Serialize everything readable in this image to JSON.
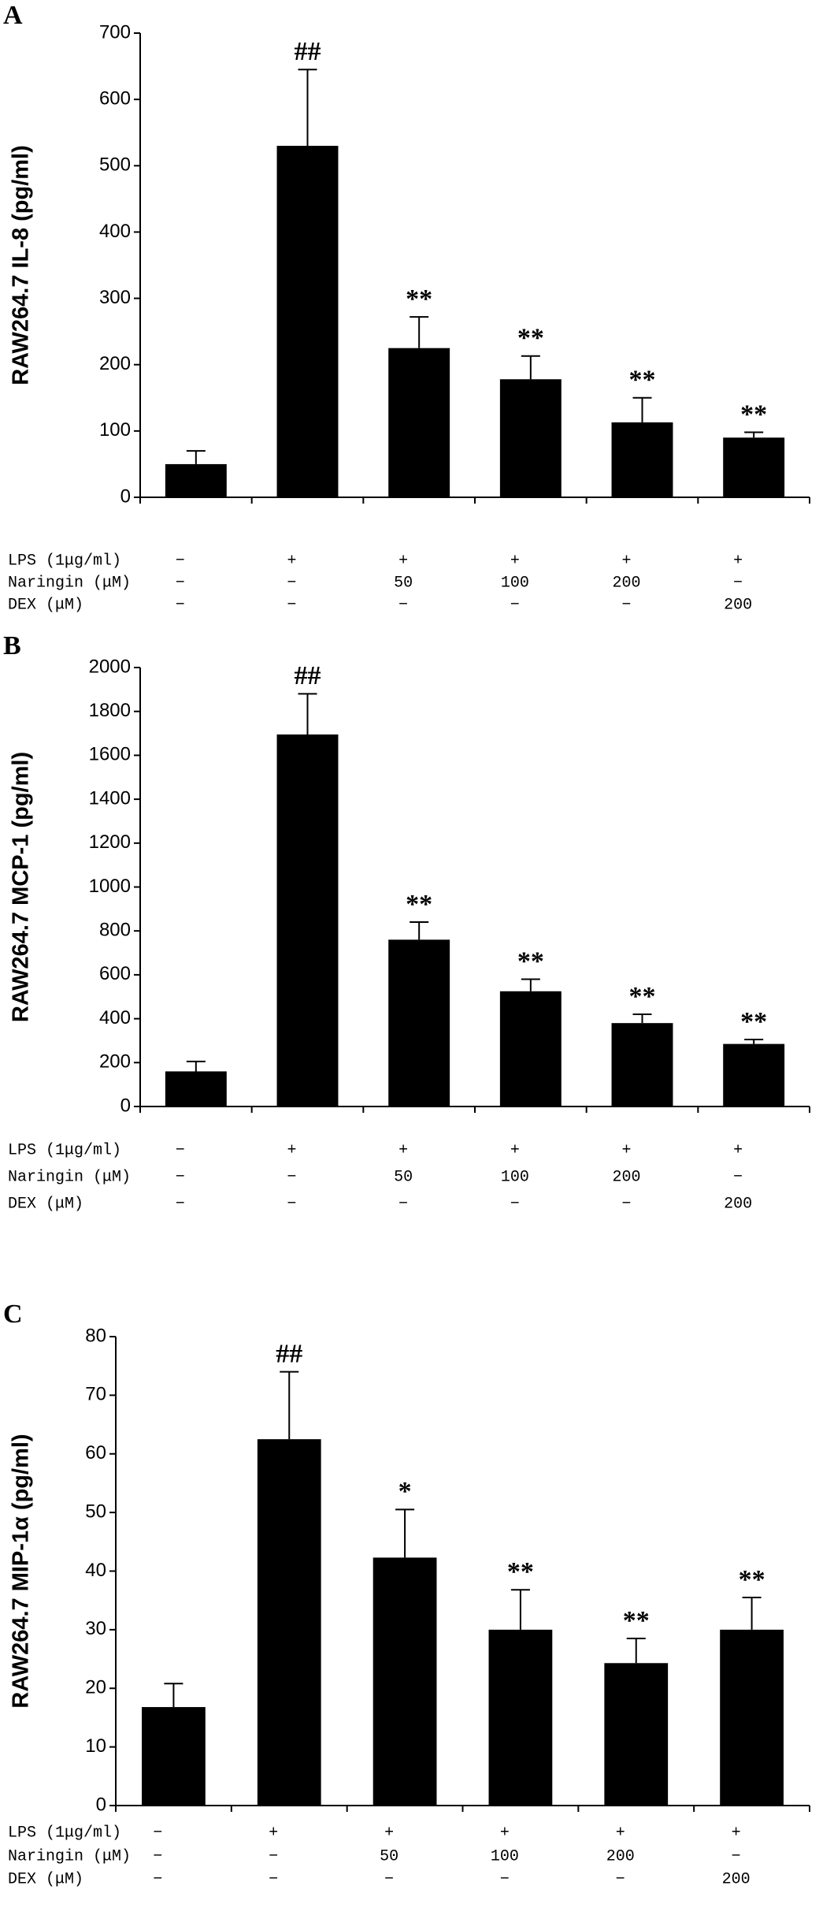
{
  "chart_data": [
    {
      "type": "bar",
      "panel": "A",
      "ylabel": "RAW264.7  IL-8 (pg/ml)",
      "color": "#000000",
      "values": [
        50,
        530,
        225,
        178,
        113,
        90
      ],
      "errors": [
        20,
        115,
        47,
        35,
        37,
        8
      ],
      "annotations": [
        null,
        "##",
        "**",
        "**",
        "**",
        "**"
      ],
      "ylim": [
        0,
        700
      ],
      "yticks": [
        0,
        100,
        200,
        300,
        400,
        500,
        600,
        700
      ],
      "treatments": [
        {
          "label": "LPS (1μg/ml)",
          "values": [
            "−",
            "+",
            "+",
            "+",
            "+",
            "+"
          ]
        },
        {
          "label": "Naringin (μM)",
          "values": [
            "−",
            "−",
            "50",
            "100",
            "200",
            "−"
          ]
        },
        {
          "label": "DEX (μM)",
          "values": [
            "−",
            "−",
            "−",
            "−",
            "−",
            "200"
          ]
        }
      ]
    },
    {
      "type": "bar",
      "panel": "B",
      "ylabel": "RAW264.7  MCP-1 (pg/ml)",
      "color": "#000000",
      "values": [
        160,
        1695,
        760,
        525,
        380,
        285
      ],
      "errors": [
        45,
        185,
        80,
        55,
        40,
        20
      ],
      "annotations": [
        null,
        "##",
        "**",
        "**",
        "**",
        "**"
      ],
      "ylim": [
        0,
        2000
      ],
      "yticks": [
        0,
        200,
        400,
        600,
        800,
        1000,
        1200,
        1400,
        1600,
        1800,
        2000
      ],
      "treatments": [
        {
          "label": "LPS (1μg/ml)",
          "values": [
            "−",
            "+",
            "+",
            "+",
            "+",
            "+"
          ]
        },
        {
          "label": "Naringin (μM)",
          "values": [
            "−",
            "−",
            "50",
            "100",
            "200",
            "−"
          ]
        },
        {
          "label": "DEX (μM)",
          "values": [
            "−",
            "−",
            "−",
            "−",
            "−",
            "200"
          ]
        }
      ]
    },
    {
      "type": "bar",
      "panel": "C",
      "ylabel": "RAW264.7 MIP-1α (pg/ml)",
      "color": "#000000",
      "values": [
        16.8,
        62.5,
        42.3,
        30,
        24.3,
        30
      ],
      "errors": [
        4,
        11.5,
        8.2,
        6.8,
        4.2,
        5.5
      ],
      "annotations": [
        null,
        "##",
        "*",
        "**",
        "**",
        "**"
      ],
      "ylim": [
        0,
        80
      ],
      "yticks": [
        0,
        10,
        20,
        30,
        40,
        50,
        60,
        70,
        80
      ],
      "treatments": [
        {
          "label": "LPS (1μg/ml)",
          "values": [
            "−",
            "+",
            "+",
            "+",
            "+",
            "+"
          ]
        },
        {
          "label": "Naringin (μM)",
          "values": [
            "−",
            "−",
            "50",
            "100",
            "200",
            "−"
          ]
        },
        {
          "label": "DEX (μM)",
          "values": [
            "−",
            "−",
            "−",
            "−",
            "−",
            "200"
          ]
        }
      ]
    }
  ]
}
